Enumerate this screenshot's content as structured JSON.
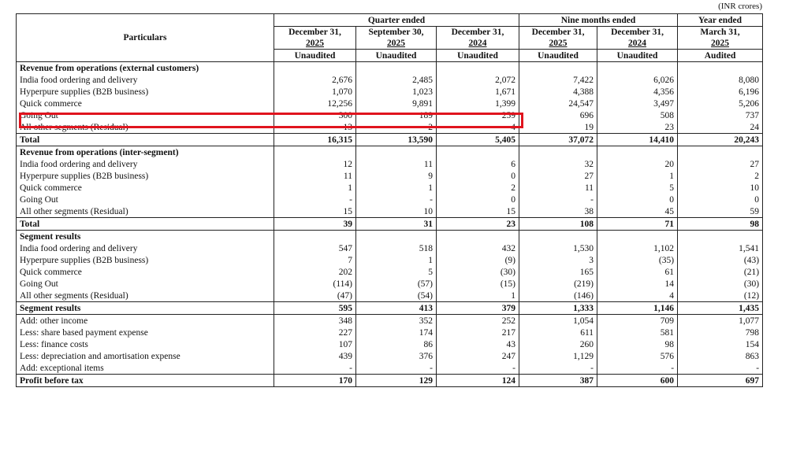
{
  "unit_note": "(INR crores)",
  "header": {
    "particulars": "Particulars",
    "groups": [
      "Quarter ended",
      "Nine months ended",
      "Year ended"
    ],
    "columns": [
      {
        "date": "December 31,",
        "year": "2025",
        "status": "Unaudited"
      },
      {
        "date": "September 30,",
        "year": "2025",
        "status": "Unaudited"
      },
      {
        "date": "December 31,",
        "year": "2024",
        "status": "Unaudited"
      },
      {
        "date": "December 31,",
        "year": "2025",
        "status": "Unaudited"
      },
      {
        "date": "December 31,",
        "year": "2024",
        "status": "Unaudited"
      },
      {
        "date": "March 31,",
        "year": "2025",
        "status": "Audited"
      }
    ]
  },
  "sections": [
    {
      "title": "Revenue from operations (external customers)",
      "rows": [
        {
          "label": "India food ordering and delivery",
          "values": [
            "2,676",
            "2,485",
            "2,072",
            "7,422",
            "6,026",
            "8,080"
          ]
        },
        {
          "label": "Hyperpure supplies (B2B business)",
          "values": [
            "1,070",
            "1,023",
            "1,671",
            "4,388",
            "4,356",
            "6,196"
          ]
        },
        {
          "label": "Quick commerce",
          "values": [
            "12,256",
            "9,891",
            "1,399",
            "24,547",
            "3,497",
            "5,206"
          ]
        },
        {
          "label": "Going Out",
          "values": [
            "300",
            "189",
            "259",
            "696",
            "508",
            "737"
          ]
        },
        {
          "label": "All other segments (Residual)",
          "values": [
            "13",
            "2",
            "4",
            "19",
            "23",
            "24"
          ]
        }
      ],
      "total": {
        "label": "Total",
        "values": [
          "16,315",
          "13,590",
          "5,405",
          "37,072",
          "14,410",
          "20,243"
        ]
      }
    },
    {
      "title": "Revenue from operations (inter-segment)",
      "rows": [
        {
          "label": "India food ordering and delivery",
          "values": [
            "12",
            "11",
            "6",
            "32",
            "20",
            "27"
          ]
        },
        {
          "label": "Hyperpure supplies (B2B business)",
          "values": [
            "11",
            "9",
            "0",
            "27",
            "1",
            "2"
          ]
        },
        {
          "label": "Quick commerce",
          "values": [
            "1",
            "1",
            "2",
            "11",
            "5",
            "10"
          ]
        },
        {
          "label": "Going Out",
          "values": [
            "-",
            "-",
            "0",
            "-",
            "0",
            "0"
          ]
        },
        {
          "label": "All other segments (Residual)",
          "values": [
            "15",
            "10",
            "15",
            "38",
            "45",
            "59"
          ]
        }
      ],
      "total": {
        "label": "Total",
        "values": [
          "39",
          "31",
          "23",
          "108",
          "71",
          "98"
        ]
      }
    },
    {
      "title": "Segment results",
      "rows": [
        {
          "label": "India food ordering and delivery",
          "values": [
            "547",
            "518",
            "432",
            "1,530",
            "1,102",
            "1,541"
          ]
        },
        {
          "label": "Hyperpure supplies (B2B business)",
          "values": [
            "7",
            "1",
            "(9)",
            "3",
            "(35)",
            "(43)"
          ]
        },
        {
          "label": "Quick commerce",
          "values": [
            "202",
            "5",
            "(30)",
            "165",
            "61",
            "(21)"
          ]
        },
        {
          "label": "Going Out",
          "values": [
            "(114)",
            "(57)",
            "(15)",
            "(219)",
            "14",
            "(30)"
          ]
        },
        {
          "label": "All other segments (Residual)",
          "values": [
            "(47)",
            "(54)",
            "1",
            "(146)",
            "4",
            "(12)"
          ]
        }
      ]
    }
  ],
  "summary": {
    "segment_results": {
      "label": "Segment results",
      "values": [
        "595",
        "413",
        "379",
        "1,333",
        "1,146",
        "1,435"
      ]
    },
    "adjustments": [
      {
        "label": "Add: other income",
        "values": [
          "348",
          "352",
          "252",
          "1,054",
          "709",
          "1,077"
        ]
      },
      {
        "label": "Less: share based payment expense",
        "values": [
          "227",
          "174",
          "217",
          "611",
          "581",
          "798"
        ]
      },
      {
        "label": "Less: finance costs",
        "values": [
          "107",
          "86",
          "43",
          "260",
          "98",
          "154"
        ]
      },
      {
        "label": "Less: depreciation and amortisation expense",
        "values": [
          "439",
          "376",
          "247",
          "1,129",
          "576",
          "863"
        ]
      },
      {
        "label": "Add: exceptional items",
        "values": [
          "-",
          "-",
          "-",
          "-",
          "-",
          "-"
        ]
      }
    ],
    "profit": {
      "label": "Profit before tax",
      "values": [
        "170",
        "129",
        "124",
        "387",
        "600",
        "697"
      ]
    }
  },
  "highlight_color": "#e0141e"
}
